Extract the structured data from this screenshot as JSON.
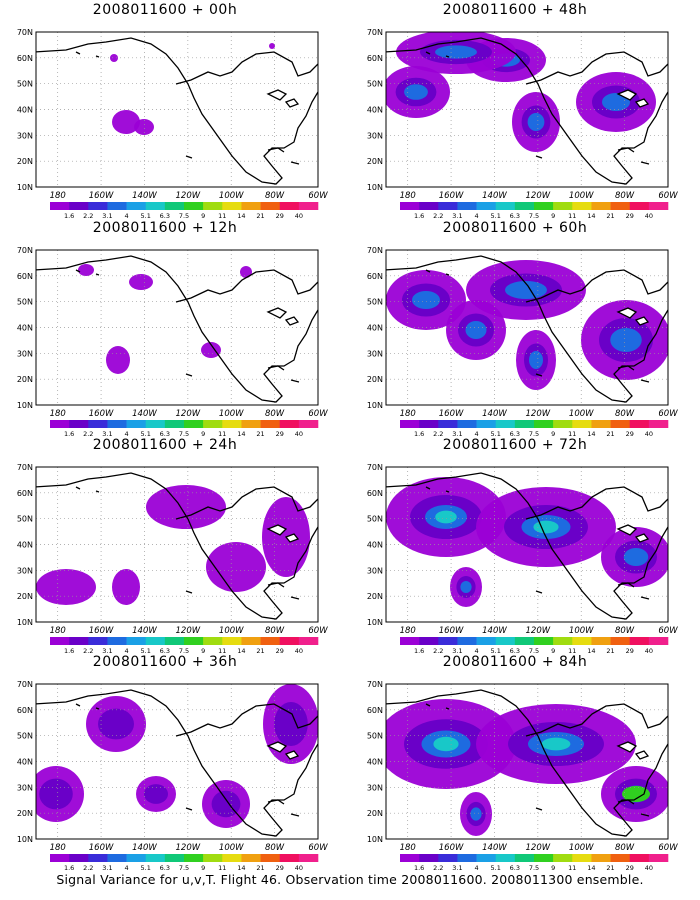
{
  "figure": {
    "footer": "Signal Variance for u,v,T. Flight 46. Observation time 2008011600. 2008011300 ensemble.",
    "panels": [
      {
        "title": "2008011600 + 00h",
        "lead_hours": 0,
        "intensity": 0.1
      },
      {
        "title": "2008011600 + 48h",
        "lead_hours": 48,
        "intensity": 0.65
      },
      {
        "title": "2008011600 + 12h",
        "lead_hours": 12,
        "intensity": 0.2
      },
      {
        "title": "2008011600 + 60h",
        "lead_hours": 60,
        "intensity": 0.75
      },
      {
        "title": "2008011600 + 24h",
        "lead_hours": 24,
        "intensity": 0.35
      },
      {
        "title": "2008011600 + 72h",
        "lead_hours": 72,
        "intensity": 0.85
      },
      {
        "title": "2008011600 + 36h",
        "lead_hours": 36,
        "intensity": 0.5
      },
      {
        "title": "2008011600 + 84h",
        "lead_hours": 84,
        "intensity": 0.95
      }
    ]
  },
  "map_axes": {
    "lat_labels": [
      "70N",
      "60N",
      "50N",
      "40N",
      "30N",
      "20N",
      "10N"
    ],
    "lon_labels": [
      "180",
      "160W",
      "140W",
      "120W",
      "100W",
      "80W",
      "60W"
    ],
    "lat_range": [
      10,
      70
    ],
    "lon_range": [
      -190,
      -60
    ],
    "grid": "dotted"
  },
  "colorbar": {
    "labels": [
      "1.6",
      "2.2",
      "3.1",
      "4",
      "5.1",
      "6.3",
      "7.5",
      "9",
      "11",
      "14",
      "21",
      "29",
      "40"
    ],
    "colors": [
      "#9b00d6",
      "#6a00c8",
      "#3a2cd9",
      "#1e6be0",
      "#1aa0e6",
      "#18c8c8",
      "#10c878",
      "#30d020",
      "#a0dc10",
      "#e6dc10",
      "#f0a010",
      "#f06010",
      "#f01060",
      "#f0208c"
    ]
  }
}
